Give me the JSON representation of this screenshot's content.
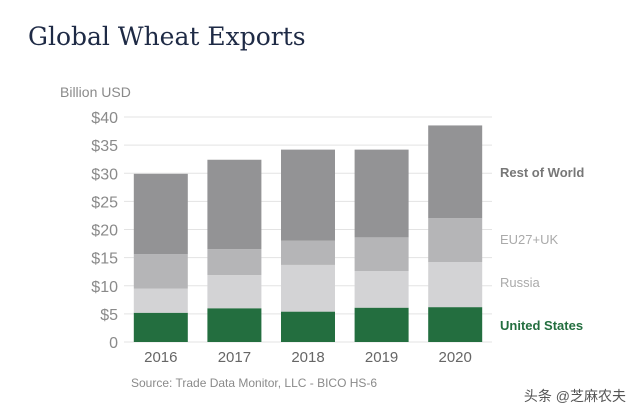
{
  "chart_data": {
    "type": "bar",
    "stacked": true,
    "title": "Global Wheat Exports",
    "ylabel": "Billion USD",
    "xlabel": "",
    "ylim": [
      0,
      40
    ],
    "yticks": [
      0,
      5,
      10,
      15,
      20,
      25,
      30,
      35,
      40
    ],
    "ytick_labels": [
      "0",
      "$5",
      "$10",
      "$15",
      "$20",
      "$25",
      "$30",
      "$35",
      "$40"
    ],
    "categories": [
      "2016",
      "2017",
      "2018",
      "2019",
      "2020"
    ],
    "series": [
      {
        "name": "United States",
        "color": "#236e3f",
        "values": [
          5.2,
          6.0,
          5.4,
          6.1,
          6.2
        ]
      },
      {
        "name": "Russia",
        "color": "#d3d3d5",
        "values": [
          4.3,
          5.9,
          8.3,
          6.5,
          8.0
        ]
      },
      {
        "name": "EU27+UK",
        "color": "#b5b5b7",
        "values": [
          6.1,
          4.6,
          4.3,
          6.0,
          7.8
        ]
      },
      {
        "name": "Rest of World",
        "color": "#939395",
        "values": [
          14.3,
          15.9,
          16.2,
          15.6,
          16.5
        ]
      }
    ],
    "legend_placement": "right",
    "grid": true,
    "source": "Source: Trade Data Monitor, LLC - BICO HS-6"
  },
  "watermark": "头条 @芝麻农夫"
}
